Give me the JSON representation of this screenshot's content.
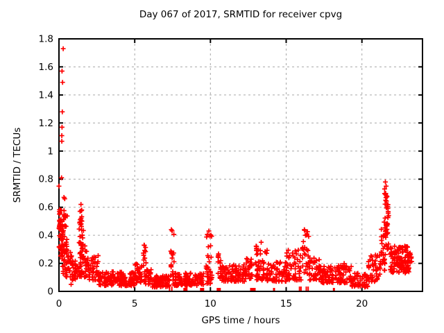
{
  "chart_data": {
    "type": "scatter",
    "title": "Day 067 of 2017, SRMTID for receiver cpvg",
    "xlabel": "GPS time / hours",
    "ylabel": "SRMTID / TECUs",
    "xlim": [
      0,
      24
    ],
    "ylim": [
      0,
      1.8
    ],
    "xticks": [
      0,
      5,
      10,
      15,
      20
    ],
    "xtick_labels": [
      "0",
      "5",
      "10",
      "15",
      "20"
    ],
    "yticks": [
      0,
      0.2,
      0.4,
      0.6,
      0.8,
      1,
      1.2,
      1.4,
      1.6,
      1.8
    ],
    "ytick_labels": [
      "0",
      "0.2",
      "0.4",
      "0.6",
      "0.8",
      "1",
      "1.2",
      "1.4",
      "1.6",
      "1.8"
    ],
    "grid": true,
    "grid_style": "dashed",
    "grid_color": "#a6a6a6",
    "border_color": "#000000",
    "background": "#ffffff",
    "text_color": "#000000",
    "marker": "plus",
    "marker_color": "#ff0000",
    "marker_size": 7,
    "points": [
      [
        0.28,
        1.73
      ],
      [
        0.2,
        1.57
      ],
      [
        0.24,
        1.49
      ],
      [
        0.22,
        1.28
      ],
      [
        0.2,
        1.17
      ],
      [
        0.19,
        1.11
      ],
      [
        0.19,
        1.07
      ],
      [
        0.17,
        0.81
      ],
      [
        0.0,
        0.75
      ],
      [
        0.33,
        0.67
      ],
      [
        0.38,
        0.66
      ],
      [
        1.45,
        0.62
      ],
      [
        1.5,
        0.58
      ],
      [
        5.62,
        0.33
      ],
      [
        7.42,
        0.44
      ],
      [
        9.9,
        0.43
      ],
      [
        13.35,
        0.35
      ],
      [
        16.2,
        0.44
      ],
      [
        16.28,
        0.4
      ],
      [
        21.55,
        0.78
      ],
      [
        21.6,
        0.75
      ],
      [
        21.5,
        0.73
      ],
      [
        21.63,
        0.68
      ],
      [
        21.57,
        0.65
      ],
      [
        0.8,
        0.05
      ]
    ],
    "band_segments_format": "[x_start_hr, x_end_hr, point_count, y_min_TECU, y_max_TECU, low_bias_exponent]",
    "band_segments": [
      [
        0.0,
        0.15,
        22,
        0.3,
        0.62,
        1
      ],
      [
        0.05,
        0.55,
        55,
        0.25,
        0.58,
        1.2
      ],
      [
        0.15,
        0.55,
        18,
        0.12,
        0.3,
        1
      ],
      [
        0.45,
        0.85,
        25,
        0.1,
        0.28,
        1.3
      ],
      [
        0.85,
        1.25,
        28,
        0.08,
        0.22,
        1.3
      ],
      [
        1.3,
        1.62,
        40,
        0.12,
        0.6,
        1.6
      ],
      [
        1.3,
        1.9,
        35,
        0.1,
        0.35,
        1.3
      ],
      [
        1.9,
        2.6,
        45,
        0.08,
        0.26,
        1.5
      ],
      [
        2.6,
        5.0,
        150,
        0.04,
        0.14,
        1.2
      ],
      [
        5.0,
        5.5,
        35,
        0.06,
        0.2,
        1.4
      ],
      [
        5.5,
        5.75,
        10,
        0.15,
        0.33,
        1
      ],
      [
        5.6,
        6.1,
        30,
        0.05,
        0.16,
        1.2
      ],
      [
        6.1,
        7.3,
        75,
        0.03,
        0.11,
        1.2
      ],
      [
        7.35,
        7.6,
        16,
        0.1,
        0.44,
        1
      ],
      [
        7.5,
        9.55,
        115,
        0.04,
        0.13,
        1.2
      ],
      [
        9.7,
        10.1,
        24,
        0.1,
        0.42,
        1.3
      ],
      [
        9.75,
        10.1,
        15,
        0.05,
        0.12,
        1
      ],
      [
        10.5,
        10.8,
        14,
        0.08,
        0.27,
        1.2
      ],
      [
        10.6,
        12.3,
        95,
        0.07,
        0.19,
        1.3
      ],
      [
        12.3,
        12.75,
        28,
        0.09,
        0.24,
        1.2
      ],
      [
        12.95,
        13.75,
        55,
        0.08,
        0.33,
        1.6
      ],
      [
        13.75,
        15.0,
        65,
        0.07,
        0.21,
        1.4
      ],
      [
        15.0,
        16.0,
        55,
        0.08,
        0.3,
        1.6
      ],
      [
        16.05,
        16.5,
        25,
        0.12,
        0.44,
        1.4
      ],
      [
        16.5,
        17.2,
        40,
        0.08,
        0.25,
        1.4
      ],
      [
        17.2,
        18.2,
        55,
        0.06,
        0.18,
        1.3
      ],
      [
        18.2,
        19.3,
        60,
        0.06,
        0.2,
        1.4
      ],
      [
        19.3,
        20.4,
        55,
        0.03,
        0.13,
        1.2
      ],
      [
        20.4,
        21.2,
        45,
        0.07,
        0.26,
        1.3
      ],
      [
        21.2,
        21.55,
        25,
        0.15,
        0.45,
        1.2
      ],
      [
        21.45,
        21.78,
        40,
        0.3,
        0.72,
        1.2
      ],
      [
        21.85,
        23.1,
        130,
        0.13,
        0.33,
        1.2
      ],
      [
        23.0,
        23.3,
        14,
        0.16,
        0.28,
        1
      ]
    ],
    "zero_line_squares_format": "[x_hr, width_px] solid red blocks sitting on y=0 axis",
    "zero_line_squares": [
      [
        8.35,
        6
      ],
      [
        9.45,
        6
      ],
      [
        10.55,
        6
      ],
      [
        12.8,
        8
      ],
      [
        14.2,
        3
      ],
      [
        18.15,
        3
      ]
    ],
    "zero_line_ticks": [
      7.3,
      7.45,
      15.88,
      15.98,
      16.33,
      16.45
    ]
  }
}
